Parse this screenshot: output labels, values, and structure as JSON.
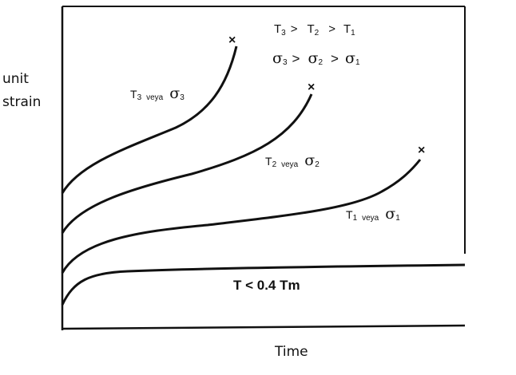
{
  "axes": {
    "y_label_line1": "unit",
    "y_label_line2": "strain",
    "x_label": "Time"
  },
  "legend": {
    "temp_order": {
      "a": "T",
      "a_sub": "3",
      "op1": ">",
      "b": "T",
      "b_sub": "2",
      "op2": ">",
      "c": "T",
      "c_sub": "1"
    },
    "stress_order": {
      "a": "σ",
      "a_sub": "3",
      "op1": ">",
      "b": "σ",
      "b_sub": "2",
      "op2": ">",
      "c": "σ",
      "c_sub": "1"
    }
  },
  "curves": [
    {
      "id": "curve-3",
      "t": "T",
      "sub": "3",
      "word": "veya",
      "sigma": "σ",
      "sigma_sub": "3"
    },
    {
      "id": "curve-2",
      "t": "T",
      "sub": "2",
      "word": "veya",
      "sigma": "σ",
      "sigma_sub": "2"
    },
    {
      "id": "curve-1",
      "t": "T",
      "sub": "1",
      "word": "veya",
      "sigma": "σ",
      "sigma_sub": "1"
    }
  ],
  "fracture_mark": "×",
  "baseline_label": "T < 0.4 Tm"
}
